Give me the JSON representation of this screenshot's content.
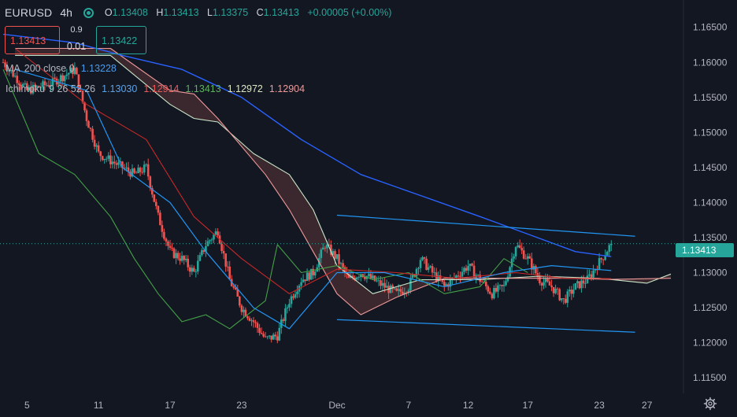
{
  "header": {
    "symbol": "EURUSD",
    "interval": "4h",
    "ohlc": {
      "open_label": "O",
      "open": "1.13408",
      "high_label": "H",
      "high": "1.13413",
      "low_label": "L",
      "low": "1.13375",
      "close_label": "C",
      "close": "1.13413",
      "change": "+0.00005 (+0.00%)"
    }
  },
  "trade_panel": {
    "sell_price": "1.13413",
    "lot_size": "0.9",
    "spread": "0.01",
    "buy_price": "1.13422"
  },
  "indicators": {
    "ma": {
      "name": "MA",
      "params": "200 close 0",
      "value": "1.13228"
    },
    "ichimoku": {
      "name": "Ichimoku",
      "params": "9 26 52 26",
      "conversion": "1.13030",
      "base": "1.12914",
      "lagging": "1.13413",
      "lead_a": "1.12972",
      "lead_b": "1.12904"
    }
  },
  "colors": {
    "background": "#131722",
    "up": "#26a69a",
    "down": "#ef5350",
    "ma200": "#2962ff",
    "conversion": "#2196f3",
    "base": "#c62828",
    "lagging": "#43a047",
    "lead_a": "#c8e6c9",
    "lead_b": "#ef9a9a",
    "trendline": "#2196f3"
  },
  "price_axis": {
    "current_price_label": "1.13413",
    "ticks": [
      "1.16500",
      "1.16000",
      "1.15500",
      "1.15000",
      "1.14500",
      "1.14000",
      "1.13500",
      "1.13000",
      "1.12500",
      "1.12000",
      "1.11500"
    ]
  },
  "time_axis": {
    "ticks": [
      "5",
      "11",
      "17",
      "23",
      "Dec",
      "7",
      "12",
      "17",
      "23",
      "27"
    ]
  },
  "icons": {
    "settings": "gear-icon"
  },
  "chart_data": {
    "type": "candlestick",
    "title": "EURUSD · 4h",
    "xlabel": "",
    "ylabel": "",
    "y_range": [
      1.113,
      1.168
    ],
    "x_range": [
      "2021-11-03",
      "2021-12-29"
    ],
    "grid": false,
    "current_price": 1.13413,
    "candle_anchors": [
      {
        "date": "2021-11-03",
        "close": 1.16
      },
      {
        "date": "2021-11-05",
        "close": 1.156
      },
      {
        "date": "2021-11-07",
        "close": 1.157
      },
      {
        "date": "2021-11-09",
        "close": 1.159
      },
      {
        "date": "2021-11-10",
        "close": 1.152
      },
      {
        "date": "2021-11-11",
        "close": 1.147
      },
      {
        "date": "2021-11-13",
        "close": 1.145
      },
      {
        "date": "2021-11-14",
        "close": 1.144
      },
      {
        "date": "2021-11-15",
        "close": 1.145
      },
      {
        "date": "2021-11-16",
        "close": 1.138
      },
      {
        "date": "2021-11-17",
        "close": 1.133
      },
      {
        "date": "2021-11-18",
        "close": 1.132
      },
      {
        "date": "2021-11-19",
        "close": 1.13
      },
      {
        "date": "2021-11-20",
        "close": 1.134
      },
      {
        "date": "2021-11-21",
        "close": 1.136
      },
      {
        "date": "2021-11-22",
        "close": 1.129
      },
      {
        "date": "2021-11-23",
        "close": 1.125
      },
      {
        "date": "2021-11-24",
        "close": 1.123
      },
      {
        "date": "2021-11-25",
        "close": 1.1205
      },
      {
        "date": "2021-11-26",
        "close": 1.121
      },
      {
        "date": "2021-11-27",
        "close": 1.126
      },
      {
        "date": "2021-11-28",
        "close": 1.129
      },
      {
        "date": "2021-11-29",
        "close": 1.13
      },
      {
        "date": "2021-11-30",
        "close": 1.134
      },
      {
        "date": "2021-12-01",
        "close": 1.132
      },
      {
        "date": "2021-12-02",
        "close": 1.129
      },
      {
        "date": "2021-12-03",
        "close": 1.13
      },
      {
        "date": "2021-12-05",
        "close": 1.128
      },
      {
        "date": "2021-12-06",
        "close": 1.127
      },
      {
        "date": "2021-12-07",
        "close": 1.128
      },
      {
        "date": "2021-12-08",
        "close": 1.132
      },
      {
        "date": "2021-12-09",
        "close": 1.13
      },
      {
        "date": "2021-12-10",
        "close": 1.128
      },
      {
        "date": "2021-12-12",
        "close": 1.131
      },
      {
        "date": "2021-12-13",
        "close": 1.129
      },
      {
        "date": "2021-12-14",
        "close": 1.127
      },
      {
        "date": "2021-12-15",
        "close": 1.128
      },
      {
        "date": "2021-12-16",
        "close": 1.134
      },
      {
        "date": "2021-12-17",
        "close": 1.132
      },
      {
        "date": "2021-12-18",
        "close": 1.129
      },
      {
        "date": "2021-12-19",
        "close": 1.128
      },
      {
        "date": "2021-12-20",
        "close": 1.126
      },
      {
        "date": "2021-12-21",
        "close": 1.128
      },
      {
        "date": "2021-12-22",
        "close": 1.129
      },
      {
        "date": "2021-12-23",
        "close": 1.1315
      },
      {
        "date": "2021-12-24",
        "close": 1.13413
      }
    ],
    "series": [
      {
        "name": "MA",
        "values": [
          [
            [
              "2021-11-03",
              1.164
            ],
            [
              "2021-11-09",
              1.1628
            ],
            [
              "2021-11-13",
              1.161
            ],
            [
              "2021-11-18",
              1.159
            ],
            [
              "2021-11-23",
              1.155
            ],
            [
              "2021-11-28",
              1.149
            ],
            [
              "2021-12-03",
              1.144
            ],
            [
              "2021-12-08",
              1.141
            ],
            [
              "2021-12-13",
              1.138
            ],
            [
              "2021-12-17",
              1.1355
            ],
            [
              "2021-12-21",
              1.133
            ],
            [
              "2021-12-24",
              1.13228
            ]
          ]
        ]
      },
      {
        "name": "Ichimoku",
        "values": [
          [
            [
              "2021-11-04",
              1.159
            ],
            [
              "2021-11-10",
              1.156
            ],
            [
              "2021-11-13",
              1.145
            ],
            [
              "2021-11-17",
              1.14
            ],
            [
              "2021-11-20",
              1.133
            ],
            [
              "2021-11-24",
              1.125
            ],
            [
              "2021-11-27",
              1.122
            ],
            [
              "2021-12-01",
              1.13
            ],
            [
              "2021-12-05",
              1.13
            ],
            [
              "2021-12-10",
              1.128
            ],
            [
              "2021-12-15",
              1.13
            ],
            [
              "2021-12-19",
              1.131
            ],
            [
              "2021-12-24",
              1.1303
            ]
          ],
          [
            [
              "2021-11-04",
              1.162
            ],
            [
              "2021-11-10",
              1.154
            ],
            [
              "2021-11-15",
              1.149
            ],
            [
              "2021-11-19",
              1.138
            ],
            [
              "2021-11-23",
              1.132
            ],
            [
              "2021-11-27",
              1.127
            ],
            [
              "2021-12-01",
              1.1305
            ],
            [
              "2021-12-06",
              1.13
            ],
            [
              "2021-12-11",
              1.1292
            ],
            [
              "2021-12-16",
              1.13
            ],
            [
              "2021-12-20",
              1.1292
            ],
            [
              "2021-12-24",
              1.12914
            ]
          ],
          [
            [
              "2021-11-03",
              1.159
            ],
            [
              "2021-11-06",
              1.147
            ],
            [
              "2021-11-09",
              1.144
            ],
            [
              "2021-11-12",
              1.138
            ],
            [
              "2021-11-14",
              1.132
            ],
            [
              "2021-11-16",
              1.127
            ],
            [
              "2021-11-18",
              1.123
            ],
            [
              "2021-11-20",
              1.124
            ],
            [
              "2021-11-22",
              1.122
            ],
            [
              "2021-11-25",
              1.126
            ],
            [
              "2021-11-26",
              1.134
            ],
            [
              "2021-11-28",
              1.13
            ],
            [
              "2021-12-01",
              1.131
            ],
            [
              "2021-12-04",
              1.129
            ],
            [
              "2021-12-07",
              1.13
            ],
            [
              "2021-12-10",
              1.127
            ],
            [
              "2021-12-13",
              1.128
            ],
            [
              "2021-12-15",
              1.132
            ],
            [
              "2021-12-17",
              1.13
            ]
          ],
          [
            [
              "2021-11-04",
              1.161
            ],
            [
              "2021-11-12",
              1.161
            ],
            [
              "2021-11-17",
              1.154
            ],
            [
              "2021-11-19",
              1.152
            ],
            [
              "2021-11-21",
              1.1515
            ],
            [
              "2021-11-24",
              1.147
            ],
            [
              "2021-11-27",
              1.144
            ],
            [
              "2021-11-29",
              1.139
            ],
            [
              "2021-12-01",
              1.131
            ],
            [
              "2021-12-04",
              1.127
            ],
            [
              "2021-12-08",
              1.129
            ],
            [
              "2021-12-13",
              1.129
            ],
            [
              "2021-12-18",
              1.1295
            ],
            [
              "2021-12-23",
              1.1292
            ],
            [
              "2021-12-27",
              1.1285
            ],
            [
              "2021-12-29",
              1.1298
            ]
          ],
          [
            [
              "2021-11-04",
              1.162
            ],
            [
              "2021-11-12",
              1.162
            ],
            [
              "2021-11-17",
              1.156
            ],
            [
              "2021-11-19",
              1.1555
            ],
            [
              "2021-11-21",
              1.152
            ],
            [
              "2021-11-23",
              1.148
            ],
            [
              "2021-11-25",
              1.144
            ],
            [
              "2021-11-27",
              1.139
            ],
            [
              "2021-11-29",
              1.133
            ],
            [
              "2021-12-01",
              1.127
            ],
            [
              "2021-12-03",
              1.124
            ],
            [
              "2021-12-06",
              1.1265
            ],
            [
              "2021-12-10",
              1.1292
            ],
            [
              "2021-12-15",
              1.1292
            ],
            [
              "2021-12-20",
              1.1292
            ],
            [
              "2021-12-24",
              1.12904
            ],
            [
              "2021-12-29",
              1.1292
            ]
          ]
        ]
      }
    ],
    "trendlines": [
      [
        [
          "2021-12-01",
          1.1382
        ],
        [
          "2021-12-26",
          1.1352
        ]
      ],
      [
        [
          "2021-12-01",
          1.1233
        ],
        [
          "2021-12-26",
          1.1215
        ]
      ]
    ]
  }
}
